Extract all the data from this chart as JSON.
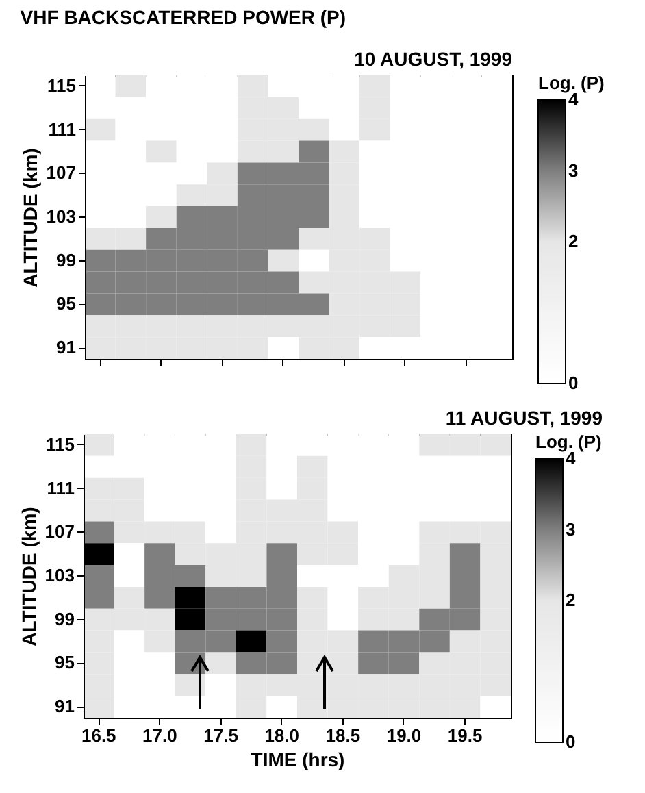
{
  "chart_data": [
    {
      "type": "heatmap",
      "title": "VHF BACKSCATERRED POWER (P)",
      "subtitle": "10 AUGUST, 1999",
      "ylabel": "ALTITUDE (km)",
      "clabel": "Log. (P)",
      "tick_labels": "y",
      "categories": [
        "16.5",
        null,
        "17.0",
        null,
        "17.5",
        null,
        "18.0",
        null,
        "18.5",
        null,
        "19.0",
        null,
        "19.5",
        null
      ],
      "y_categories": [
        "115",
        null,
        "111",
        null,
        "107",
        null,
        "103",
        null,
        "99",
        null,
        "95",
        null,
        "91"
      ],
      "clim": [
        0,
        4
      ],
      "cticks": [
        0,
        2,
        3,
        4
      ],
      "colors": [
        "#ffffff",
        "#e6e6e6",
        "#7f7f7f",
        "#000000"
      ],
      "cells": [
        [
          0,
          2,
          0,
          0,
          0,
          2,
          0,
          0,
          0,
          2,
          0,
          0,
          0,
          0
        ],
        [
          0,
          0,
          0,
          0,
          0,
          2,
          2,
          0,
          0,
          2,
          0,
          0,
          0,
          0
        ],
        [
          2,
          0,
          0,
          0,
          0,
          2,
          2,
          2,
          0,
          2,
          0,
          0,
          0,
          0
        ],
        [
          0,
          0,
          2,
          0,
          0,
          2,
          2,
          3,
          2,
          0,
          0,
          0,
          0,
          0
        ],
        [
          0,
          0,
          0,
          0,
          2,
          3,
          3,
          3,
          2,
          0,
          0,
          0,
          0,
          0
        ],
        [
          0,
          0,
          0,
          2,
          2,
          3,
          3,
          3,
          2,
          0,
          0,
          0,
          0,
          0
        ],
        [
          0,
          0,
          2,
          3,
          3,
          3,
          3,
          3,
          2,
          0,
          0,
          0,
          0,
          0
        ],
        [
          2,
          2,
          3,
          3,
          3,
          3,
          3,
          2,
          2,
          2,
          0,
          0,
          0,
          0
        ],
        [
          3,
          3,
          3,
          3,
          3,
          3,
          2,
          0,
          2,
          2,
          0,
          0,
          0,
          0
        ],
        [
          3,
          3,
          3,
          3,
          3,
          3,
          3,
          2,
          2,
          2,
          2,
          0,
          0,
          0
        ],
        [
          3,
          3,
          3,
          3,
          3,
          3,
          3,
          3,
          2,
          2,
          2,
          0,
          0,
          0
        ],
        [
          2,
          2,
          2,
          2,
          2,
          2,
          2,
          2,
          2,
          2,
          2,
          0,
          0,
          0
        ],
        [
          2,
          2,
          2,
          2,
          2,
          2,
          0,
          2,
          2,
          0,
          0,
          0,
          0,
          0
        ]
      ]
    },
    {
      "type": "heatmap",
      "title": "11 AUGUST, 1999",
      "xlabel": "TIME (hrs)",
      "ylabel": "ALTITUDE (km)",
      "clabel": "Log. (P)",
      "categories": [
        "16.5",
        null,
        "17.0",
        null,
        "17.5",
        null,
        "18.0",
        null,
        "18.5",
        null,
        "19.0",
        null,
        "19.5",
        null
      ],
      "y_categories": [
        "115",
        null,
        "111",
        null,
        "107",
        null,
        "103",
        null,
        "99",
        null,
        "95",
        null,
        "91"
      ],
      "clim": [
        0,
        4
      ],
      "cticks": [
        0,
        2,
        3,
        4
      ],
      "colors": [
        "#ffffff",
        "#e6e6e6",
        "#7f7f7f",
        "#000000"
      ],
      "cells": [
        [
          2,
          0,
          0,
          0,
          0,
          2,
          0,
          0,
          0,
          0,
          0,
          2,
          2,
          2
        ],
        [
          0,
          0,
          0,
          0,
          0,
          2,
          0,
          2,
          0,
          0,
          0,
          0,
          0,
          0
        ],
        [
          2,
          2,
          0,
          0,
          0,
          2,
          0,
          2,
          0,
          0,
          0,
          0,
          0,
          0
        ],
        [
          2,
          2,
          0,
          0,
          0,
          2,
          2,
          2,
          0,
          0,
          0,
          0,
          0,
          0
        ],
        [
          3,
          2,
          2,
          2,
          0,
          2,
          2,
          2,
          2,
          0,
          0,
          2,
          2,
          2
        ],
        [
          4,
          0,
          3,
          2,
          2,
          2,
          3,
          2,
          2,
          0,
          0,
          2,
          3,
          2
        ],
        [
          3,
          0,
          3,
          3,
          2,
          2,
          3,
          0,
          0,
          0,
          2,
          2,
          3,
          2
        ],
        [
          3,
          2,
          3,
          4,
          3,
          3,
          3,
          2,
          0,
          2,
          2,
          2,
          3,
          2
        ],
        [
          2,
          2,
          2,
          4,
          3,
          3,
          3,
          2,
          0,
          2,
          2,
          3,
          3,
          2
        ],
        [
          2,
          0,
          2,
          3,
          3,
          4,
          3,
          2,
          2,
          3,
          3,
          3,
          2,
          2
        ],
        [
          2,
          0,
          0,
          3,
          2,
          3,
          3,
          2,
          2,
          3,
          3,
          2,
          2,
          2
        ],
        [
          2,
          0,
          0,
          2,
          0,
          2,
          2,
          2,
          2,
          2,
          2,
          2,
          2,
          2
        ],
        [
          2,
          0,
          0,
          0,
          0,
          2,
          0,
          2,
          2,
          2,
          2,
          2,
          2,
          0
        ]
      ]
    }
  ]
}
